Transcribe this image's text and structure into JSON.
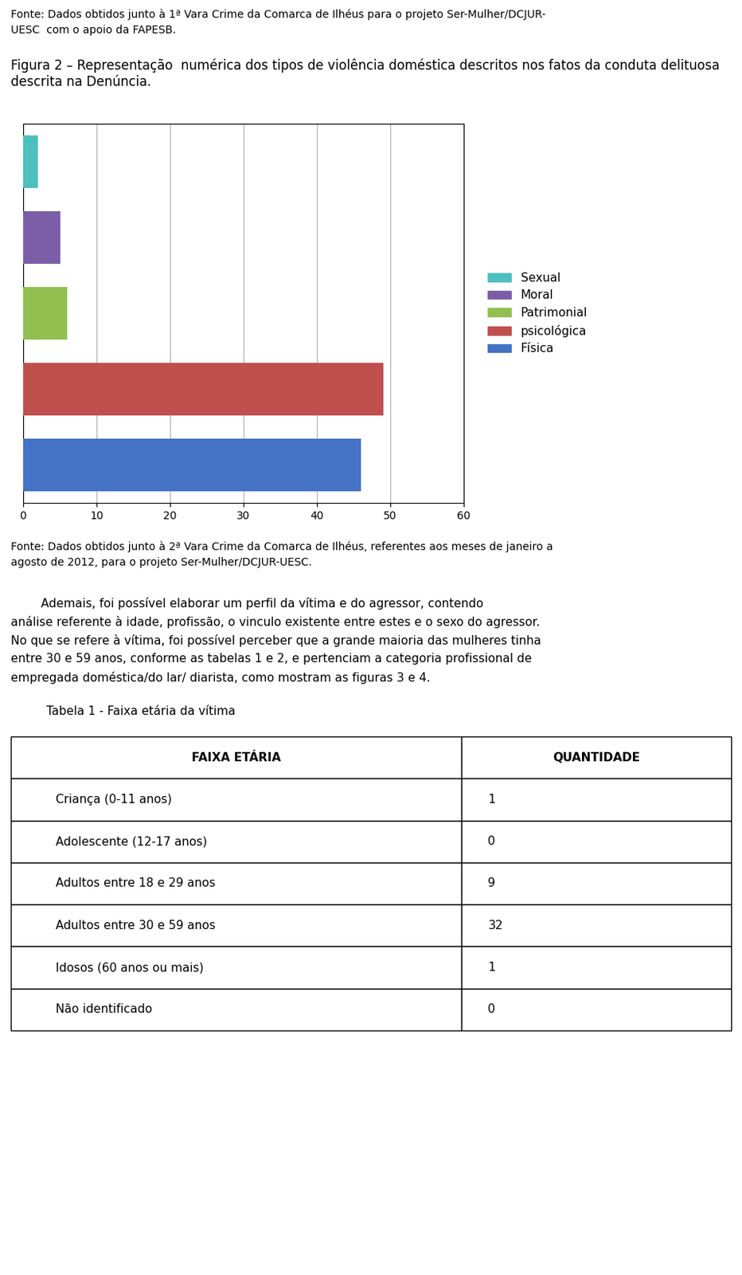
{
  "chart_data": [
    {
      "type": "bar",
      "orientation": "horizontal",
      "annotations": [
        "Fonte: Dados obtidos junto à 1ª Vara Crime da Comarca de Ilhéus para o projeto Ser-Mulher/DCJUR-",
        "UESC  com o apoio da FAPESB."
      ],
      "title": "Figura 2 – Representação  numérica dos tipos de violência doméstica descritos nos fatos da conduta delituosa descrita na Denúncia.",
      "categories": [
        "Sexual",
        "Moral",
        "Patrimonial",
        "psicológica",
        "Física"
      ],
      "values": [
        2,
        5,
        6,
        49,
        46
      ],
      "colors": [
        "#4dbfbf",
        "#7b5ea7",
        "#92c050",
        "#c0504d",
        "#4472c4"
      ],
      "xlim": [
        0,
        60
      ],
      "xticks": [
        0,
        10,
        20,
        30,
        40,
        50,
        60
      ],
      "grid": true,
      "legend": "center left",
      "tick_labels": "x"
    },
    {
      "type": "table",
      "annotations": [
        "Fonte: Dados obtidos junto à 2ª Vara Crime da Comarca de Ilhéus, referentes aos meses de janeiro a",
        "agosto de 2012, para o projeto Ser-Mulher/DCJUR-UESC.",
        "        Ademais, foi possível elaborar um perfil da vítima e do agressor, contendo",
        "análise referente à idade, profissão, o vinculo existente entre estes e o sexo do agressor.",
        "No que se refere à vítima, foi possível perceber que a grande maioria das mulheres tinha",
        "entre 30 e 59 anos, conforme as tabelas 1 e 2, e pertenciam a categoria profissional de",
        "empregada doméstica/do lar/ diarista, como mostram as figuras 3 e 4."
      ],
      "title": "Tabela 1 - Faixa etária da vítima",
      "columns": [
        "FAIXA ETÁRIA",
        "QUANTIDADE"
      ],
      "rows": [
        [
          "Criança (0-11 anos)",
          "1"
        ],
        [
          "Adolescente (12-17 anos)",
          "0"
        ],
        [
          "Adultos entre 18 e 29 anos",
          "9"
        ],
        [
          "Adultos entre 30 e 59 anos",
          "32"
        ],
        [
          "Idosos (60 anos ou mais)",
          "1"
        ],
        [
          "Não identificado",
          "0"
        ]
      ]
    }
  ]
}
